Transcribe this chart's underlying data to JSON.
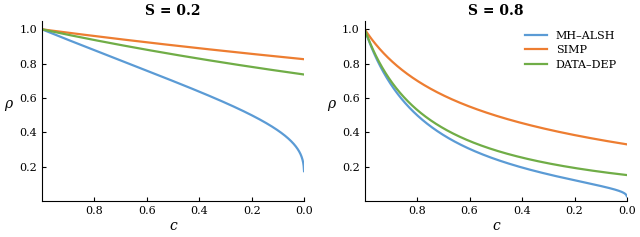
{
  "S_values": [
    0.2,
    0.8
  ],
  "titles": [
    "S = 0.2",
    "S = 0.8"
  ],
  "colors": {
    "MH-ALSH": "#5b9bd5",
    "SIMP": "#ed7d31",
    "DATA-DEP": "#70ad47"
  },
  "legend_labels": [
    "MH-ALSH",
    "SIMP",
    "DATA-DEP"
  ],
  "xlabel": "c",
  "ylabel": "ρ",
  "ylim": [
    0.0,
    1.05
  ],
  "xticks": [
    0.8,
    0.6,
    0.4,
    0.2,
    0.0
  ],
  "yticks": [
    0.2,
    0.4,
    0.6,
    0.8,
    1.0
  ],
  "linewidth": 1.6,
  "figsize": [
    6.4,
    2.37
  ],
  "dpi": 100,
  "c_min": 0.001,
  "c_max": 1.0,
  "n_points": 2000
}
